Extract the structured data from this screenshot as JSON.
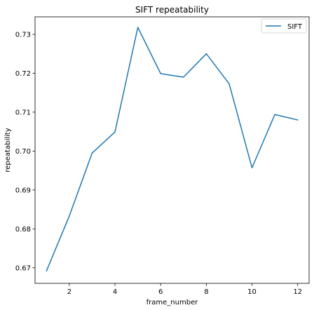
{
  "chart_data": {
    "type": "line",
    "title": "SIFT repeatability",
    "xlabel": "frame_number",
    "ylabel": "repeatability",
    "xlim": [
      0.5,
      12.5
    ],
    "ylim": [
      0.666,
      0.7345
    ],
    "x_ticks": [
      2,
      4,
      6,
      8,
      10,
      12
    ],
    "x_tick_labels": [
      "2",
      "4",
      "6",
      "8",
      "10",
      "12"
    ],
    "y_ticks": [
      0.67,
      0.68,
      0.69,
      0.7,
      0.71,
      0.72,
      0.73
    ],
    "y_tick_labels": [
      "0.67",
      "0.68",
      "0.69",
      "0.70",
      "0.71",
      "0.72",
      "0.73"
    ],
    "grid": false,
    "legend_position": "top-right",
    "series": [
      {
        "name": "SIFT",
        "color": "#1f77b4",
        "x": [
          1,
          2,
          3,
          4,
          5,
          6,
          7,
          8,
          9,
          10,
          11,
          12
        ],
        "values": [
          0.6692,
          0.6833,
          0.6995,
          0.7049,
          0.7318,
          0.7199,
          0.719,
          0.725,
          0.7173,
          0.6957,
          0.7094,
          0.708
        ]
      }
    ]
  }
}
